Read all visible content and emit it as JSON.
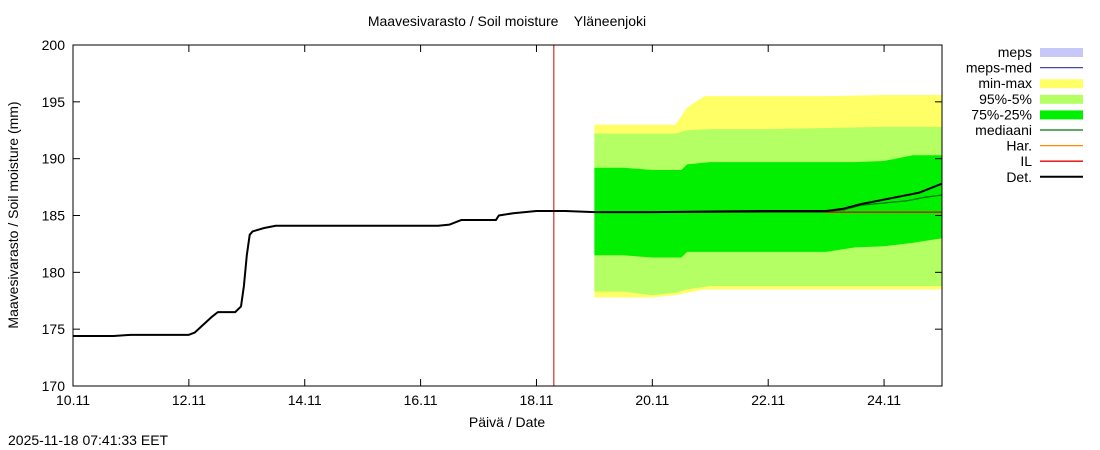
{
  "chart_data": {
    "type": "area",
    "title": "Maavesivarasto / Soil moisture    Yläneenjoki",
    "xlabel": "Päivä / Date",
    "ylabel": "Maavesivarasto / Soil moisture (mm)",
    "timestamp": "2025-11-18 07:41:33 EET",
    "x_unit": "days since 10.11",
    "xlim": [
      0,
      15.0
    ],
    "ylim": [
      170,
      200
    ],
    "xticks": [
      {
        "x": 0,
        "label": "10.11"
      },
      {
        "x": 2,
        "label": "12.11"
      },
      {
        "x": 4,
        "label": "14.11"
      },
      {
        "x": 6,
        "label": "16.11"
      },
      {
        "x": 8,
        "label": "18.11"
      },
      {
        "x": 10,
        "label": "20.11"
      },
      {
        "x": 12,
        "label": "22.11"
      },
      {
        "x": 14,
        "label": "24.11"
      }
    ],
    "yticks": [
      170,
      175,
      180,
      185,
      190,
      195,
      200
    ],
    "current_time_x": 8.3,
    "legend": [
      {
        "label": "meps",
        "color": "#c8c8f8",
        "style": "box"
      },
      {
        "label": "meps-med",
        "color": "#4646b4",
        "style": "line"
      },
      {
        "label": "min-max",
        "color": "#ffff66",
        "style": "box"
      },
      {
        "label": "95%-5%",
        "color": "#b4ff64",
        "style": "box"
      },
      {
        "label": "75%-25%",
        "color": "#00f000",
        "style": "box"
      },
      {
        "label": "mediaani",
        "color": "#00780a",
        "style": "line"
      },
      {
        "label": "Har.",
        "color": "#ff8c00",
        "style": "line"
      },
      {
        "label": "IL",
        "color": "#e00000",
        "style": "line"
      },
      {
        "label": "Det.",
        "color": "#000000",
        "style": "line"
      }
    ],
    "bands": [
      {
        "name": "min-max",
        "color": "#ffff66",
        "x": [
          9.0,
          9.5,
          10.0,
          10.4,
          10.6,
          10.9,
          12.0,
          13.0,
          14.0,
          15.0
        ],
        "upper": [
          193.0,
          193.0,
          193.0,
          193.0,
          194.5,
          195.5,
          195.5,
          195.5,
          195.6,
          195.6
        ],
        "lower": [
          177.8,
          177.8,
          177.8,
          178.0,
          178.2,
          178.5,
          178.5,
          178.5,
          178.5,
          178.5
        ]
      },
      {
        "name": "95%-5%",
        "color": "#b4ff64",
        "x": [
          9.0,
          9.5,
          10.0,
          10.4,
          10.6,
          11.0,
          12.0,
          13.0,
          14.0,
          15.0
        ],
        "upper": [
          192.2,
          192.2,
          192.2,
          192.2,
          192.5,
          192.6,
          192.6,
          192.7,
          192.8,
          192.8
        ],
        "lower": [
          178.3,
          178.3,
          178.0,
          178.2,
          178.5,
          178.8,
          178.8,
          178.8,
          178.8,
          178.8
        ]
      },
      {
        "name": "75%-25%",
        "color": "#00f000",
        "x": [
          9.0,
          9.5,
          10.0,
          10.5,
          10.6,
          11.0,
          12.0,
          13.0,
          13.5,
          14.0,
          14.5,
          15.0
        ],
        "upper": [
          189.2,
          189.2,
          189.0,
          189.0,
          189.5,
          189.7,
          189.7,
          189.7,
          189.7,
          189.8,
          190.3,
          190.3
        ],
        "lower": [
          181.5,
          181.5,
          181.3,
          181.3,
          181.8,
          181.8,
          181.8,
          181.8,
          182.2,
          182.3,
          182.6,
          183.0
        ]
      }
    ],
    "series": [
      {
        "name": "Det.",
        "color": "#000000",
        "width": 2,
        "x": [
          0,
          0.7,
          1.0,
          2.0,
          2.1,
          2.25,
          2.4,
          2.5,
          2.8,
          2.9,
          2.95,
          3.0,
          3.05,
          3.1,
          3.3,
          3.5,
          4.0,
          5.0,
          6.0,
          6.3,
          6.5,
          6.7,
          7.0,
          7.3,
          7.35,
          7.6,
          7.8,
          8.0,
          8.3,
          8.5,
          9.0,
          10.0,
          12.0,
          13.0,
          13.3,
          13.6,
          14.0,
          14.3,
          14.6,
          14.9,
          15.0
        ],
        "y": [
          174.4,
          174.4,
          174.5,
          174.5,
          174.7,
          175.4,
          176.1,
          176.5,
          176.5,
          177.0,
          178.8,
          181.5,
          183.3,
          183.6,
          183.9,
          184.1,
          184.1,
          184.1,
          184.1,
          184.1,
          184.2,
          184.6,
          184.6,
          184.6,
          185.0,
          185.2,
          185.3,
          185.4,
          185.4,
          185.4,
          185.3,
          185.3,
          185.4,
          185.4,
          185.6,
          186.0,
          186.4,
          186.7,
          187.0,
          187.6,
          187.8
        ]
      },
      {
        "name": "mediaani",
        "color": "#00780a",
        "width": 1.3,
        "x": [
          9.0,
          10.0,
          11.0,
          12.0,
          12.9,
          13.3,
          13.6,
          14.0,
          14.4,
          14.7,
          15.0
        ],
        "y": [
          185.3,
          185.3,
          185.3,
          185.3,
          185.3,
          185.5,
          185.9,
          186.1,
          186.3,
          186.6,
          186.8
        ]
      },
      {
        "name": "IL",
        "color": "#e00000",
        "width": 1.3,
        "x": [
          9.0,
          15.0
        ],
        "y": [
          185.3,
          185.3
        ]
      }
    ]
  }
}
